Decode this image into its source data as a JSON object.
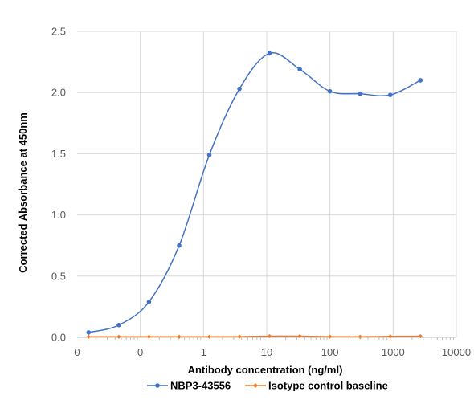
{
  "chart_data": {
    "type": "line",
    "xscale": "log",
    "xlabel": "Antibody concentration (ng/ml)",
    "ylabel": "Corrected Absorbance at 450nm",
    "ylim": [
      0,
      2.5
    ],
    "y_ticks": [
      0.0,
      0.5,
      1.0,
      1.5,
      2.0,
      2.5
    ],
    "y_tick_labels": [
      "0.0",
      "0.5",
      "1.0",
      "1.5",
      "2.0",
      "2.5"
    ],
    "x_ticks": [
      0.01,
      0.1,
      1,
      10,
      100,
      1000,
      10000
    ],
    "x_tick_labels": [
      "0",
      "0",
      "1",
      "10",
      "100",
      "1000",
      "10000"
    ],
    "x_gridlines": [
      0.1,
      1,
      10,
      100,
      1000,
      10000
    ],
    "grid": true,
    "legend": "bottom",
    "series": [
      {
        "name": "NBP3-43556",
        "color": "#4472C4",
        "points": [
          [
            0.0152,
            0.04
          ],
          [
            0.0457,
            0.1
          ],
          [
            0.137,
            0.29
          ],
          [
            0.412,
            0.75
          ],
          [
            1.235,
            1.49
          ],
          [
            3.704,
            2.03
          ],
          [
            11.11,
            2.32
          ],
          [
            33.33,
            2.19
          ],
          [
            100,
            2.01
          ],
          [
            300,
            1.99
          ],
          [
            900,
            1.98
          ],
          [
            2700,
            2.1
          ]
        ]
      },
      {
        "name": "Isotype control baseline",
        "color": "#ED7D31",
        "points": [
          [
            0.0152,
            0.005
          ],
          [
            0.0457,
            0.005
          ],
          [
            0.137,
            0.005
          ],
          [
            0.412,
            0.005
          ],
          [
            1.235,
            0.005
          ],
          [
            3.704,
            0.006
          ],
          [
            11.11,
            0.01
          ],
          [
            33.33,
            0.01
          ],
          [
            100,
            0.006
          ],
          [
            300,
            0.005
          ],
          [
            900,
            0.008
          ],
          [
            2700,
            0.01
          ]
        ]
      }
    ]
  }
}
